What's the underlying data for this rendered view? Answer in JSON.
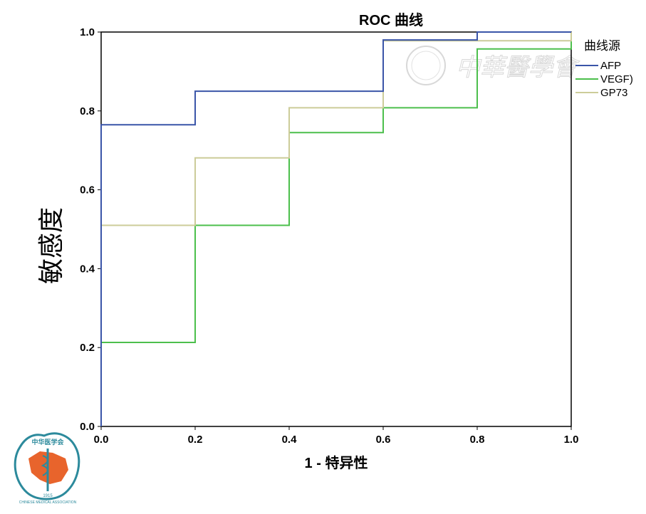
{
  "chart_data": {
    "type": "line",
    "step": true,
    "title": "ROC 曲线",
    "xlabel": "1 - 特异性",
    "ylabel": "敏感度",
    "xlim": [
      0,
      1
    ],
    "ylim": [
      0,
      1
    ],
    "xticks": [
      "0.0",
      "0.2",
      "0.4",
      "0.6",
      "0.8",
      "1.0"
    ],
    "yticks": [
      "0.0",
      "0.2",
      "0.4",
      "0.6",
      "0.8",
      "1.0"
    ],
    "grid": false,
    "legend_title": "曲线源",
    "legend_position": "right",
    "series": [
      {
        "name": "AFP",
        "color": "#3a55a8",
        "points": [
          [
            0,
            0
          ],
          [
            0,
            0.765
          ],
          [
            0.2,
            0.765
          ],
          [
            0.2,
            0.85
          ],
          [
            0.6,
            0.85
          ],
          [
            0.6,
            0.98
          ],
          [
            0.8,
            0.98
          ],
          [
            0.8,
            1.0
          ],
          [
            1.0,
            1.0
          ]
        ]
      },
      {
        "name": "VEGF)",
        "color": "#4cbf4c",
        "points": [
          [
            0,
            0
          ],
          [
            0,
            0.213
          ],
          [
            0.2,
            0.213
          ],
          [
            0.2,
            0.51
          ],
          [
            0.4,
            0.51
          ],
          [
            0.4,
            0.745
          ],
          [
            0.6,
            0.745
          ],
          [
            0.6,
            0.808
          ],
          [
            0.8,
            0.808
          ],
          [
            0.8,
            0.957
          ],
          [
            1.0,
            0.957
          ],
          [
            1.0,
            1.0
          ]
        ]
      },
      {
        "name": "GP73",
        "color": "#cccc99",
        "points": [
          [
            0,
            0
          ],
          [
            0,
            0.51
          ],
          [
            0.2,
            0.51
          ],
          [
            0.2,
            0.681
          ],
          [
            0.4,
            0.681
          ],
          [
            0.4,
            0.808
          ],
          [
            0.6,
            0.808
          ],
          [
            0.6,
            0.978
          ],
          [
            1.0,
            0.978
          ],
          [
            1.0,
            1.0
          ]
        ]
      }
    ]
  },
  "watermark": {
    "text": "中華醫學會",
    "logo_text_top": "中华医学会",
    "logo_text_bottom": "CHINESE MEDICAL ASSOCIATION",
    "logo_year": "1915",
    "logo_color": "#2c8a9c",
    "logo_map_color": "#e8642c"
  }
}
